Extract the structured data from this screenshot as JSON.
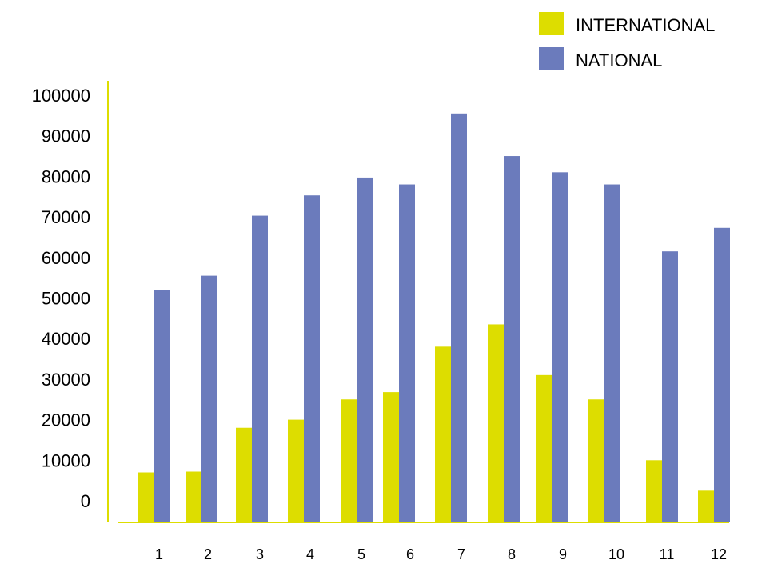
{
  "chart_data": {
    "type": "bar",
    "categories": [
      "1",
      "2",
      "3",
      "4",
      "5",
      "6",
      "7",
      "8",
      "9",
      "10",
      "11",
      "12"
    ],
    "series": [
      {
        "name": "INTERNATIONAL",
        "color": "#dddd00",
        "values": [
          7000,
          7200,
          18000,
          20000,
          25000,
          26800,
          38000,
          43500,
          31000,
          25000,
          10000,
          2500
        ]
      },
      {
        "name": "NATIONAL",
        "color": "#6b7bbc",
        "values": [
          52000,
          55500,
          70300,
          75300,
          79700,
          78000,
          95500,
          85000,
          81000,
          78000,
          61500,
          67300
        ]
      }
    ],
    "title": "",
    "xlabel": "",
    "ylabel": "",
    "ylim": [
      0,
      100000
    ],
    "yticks": [
      "0",
      "10000",
      "20000",
      "30000",
      "40000",
      "50000",
      "60000",
      "70000",
      "80000",
      "90000",
      "100000"
    ],
    "axis_color": "#dddd00",
    "grid": false,
    "legend_position": "top-right"
  }
}
